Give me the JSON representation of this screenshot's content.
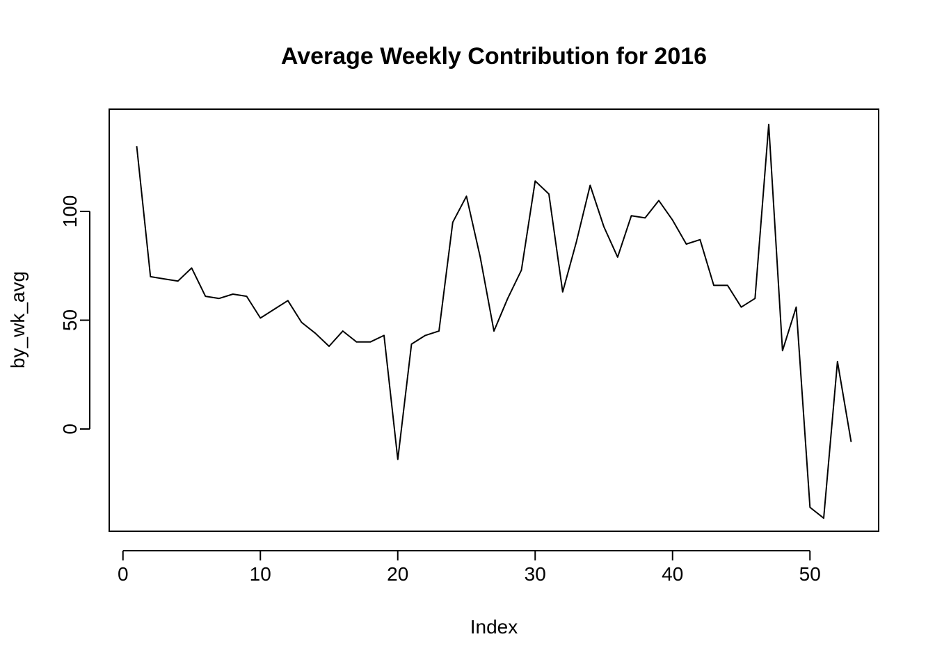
{
  "chart_data": {
    "type": "line",
    "title": "Average Weekly Contribution for 2016",
    "xlabel": "Index",
    "ylabel": "by_wk_avg",
    "xlim": [
      -1,
      55
    ],
    "ylim": [
      -47,
      147
    ],
    "x_ticks": [
      0,
      10,
      20,
      30,
      40,
      50
    ],
    "x_tick_labels": [
      "0",
      "10",
      "20",
      "30",
      "40",
      "50"
    ],
    "y_ticks": [
      0,
      50,
      100
    ],
    "y_tick_labels": [
      "0",
      "50",
      "100"
    ],
    "grid": false,
    "legend": "none",
    "line_color": "#000000",
    "series": [
      {
        "x": [
          1,
          2,
          3,
          4,
          5,
          6,
          7,
          8,
          9,
          10,
          11,
          12,
          13,
          14,
          15,
          16,
          17,
          18,
          19,
          20,
          21,
          22,
          23,
          24,
          25,
          26,
          27,
          28,
          29,
          30,
          31,
          32,
          33,
          34,
          35,
          36,
          37,
          38,
          39,
          40,
          41,
          42,
          43,
          44,
          45,
          46,
          47,
          48,
          49,
          50,
          51,
          52,
          53
        ],
        "values": [
          130,
          70,
          69,
          68,
          74,
          61,
          60,
          62,
          61,
          51,
          55,
          59,
          49,
          44,
          38,
          45,
          40,
          40,
          43,
          -14,
          39,
          43,
          45,
          95,
          107,
          79,
          45,
          60,
          73,
          114,
          108,
          63,
          86,
          112,
          93,
          79,
          98,
          97,
          105,
          96,
          85,
          87,
          66,
          66,
          56,
          60,
          140,
          36,
          56,
          -36,
          -41,
          31,
          -6
        ]
      }
    ]
  }
}
